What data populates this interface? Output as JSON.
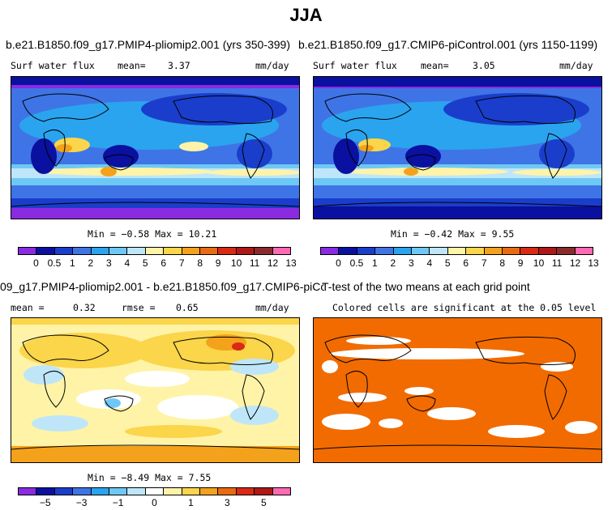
{
  "title": "JJA",
  "panels": {
    "p1": {
      "run_title": "b.e21.B1850.f09_g17.PMIP4-pliomip2.001 (yrs 350-399)",
      "var_label": "Surf water flux",
      "mean_label": "mean=",
      "mean_value": "3.37",
      "units": "mm/day",
      "min_max": "Min =  −0.58 Max =  10.21"
    },
    "p2": {
      "run_title": "b.e21.B1850.f09_g17.CMIP6-piControl.001 (yrs 1150-1199)",
      "var_label": "Surf water flux",
      "mean_label": "mean=",
      "mean_value": "3.05",
      "units": "mm/day",
      "min_max": "Min =  −0.42 Max =    9.55"
    },
    "p3": {
      "diff_title": "09_g17.PMIP4-pliomip2.001 - b.e21.B1850.f09_g17.CMIP6-piControl.001",
      "mean_label": "mean =",
      "mean_value": "0.32",
      "rmse_label": "rmse =",
      "rmse_value": "0.65",
      "units": "mm/day",
      "min_max": "Min =  −8.49 Max =   7.55"
    },
    "p4": {
      "ttest_title": "T-test of the two means at each grid point",
      "sig_label": "Colored cells are significant at the 0.05 level"
    }
  },
  "chart_data": [
    {
      "type": "heatmap",
      "title": "b.e21.B1850.f09_g17.PMIP4-pliomip2.001 (yrs 350-399)",
      "variable": "Surf water flux",
      "units": "mm/day",
      "mean": 3.37,
      "min": -0.58,
      "max": 10.21,
      "colorbar_levels": [
        0,
        0.5,
        1,
        2,
        3,
        4,
        5,
        6,
        7,
        8,
        9,
        10,
        11,
        12,
        13
      ],
      "colorbar_tick_labels": [
        "0",
        "0.5",
        "1",
        "2",
        "3",
        "4",
        "5",
        "6",
        "7",
        "8",
        "9",
        "10",
        "11",
        "12",
        "13"
      ]
    },
    {
      "type": "heatmap",
      "title": "b.e21.B1850.f09_g17.CMIP6-piControl.001 (yrs 1150-1199)",
      "variable": "Surf water flux",
      "units": "mm/day",
      "mean": 3.05,
      "min": -0.42,
      "max": 9.55,
      "colorbar_levels": [
        0,
        0.5,
        1,
        2,
        3,
        4,
        5,
        6,
        7,
        8,
        9,
        10,
        11,
        12,
        13
      ],
      "colorbar_tick_labels": [
        "0",
        "0.5",
        "1",
        "2",
        "3",
        "4",
        "5",
        "6",
        "7",
        "8",
        "9",
        "10",
        "11",
        "12",
        "13"
      ]
    },
    {
      "type": "heatmap",
      "title": "09_g17.PMIP4-pliomip2.001 - b.e21.B1850.f09_g17.CMIP6-piControl.001",
      "units": "mm/day",
      "mean": 0.32,
      "rmse": 0.65,
      "min": -8.49,
      "max": 7.55,
      "colorbar_tick_labels": [
        "-5",
        "-3",
        "-1",
        "0",
        "1",
        "3",
        "5"
      ]
    },
    {
      "type": "heatmap",
      "title": "T-test of the two means at each grid point",
      "subtitle": "Colored cells are significant at the 0.05 level"
    }
  ],
  "colors": {
    "abs_scale": [
      "#8a2be2",
      "#0a10a0",
      "#1a3ecb",
      "#3f74e6",
      "#2aa4ee",
      "#6ec8f5",
      "#bfe6f8",
      "#fff3a8",
      "#fbd54a",
      "#f4a21b",
      "#ea6a10",
      "#d82a14",
      "#b01818",
      "#8c2b2b",
      "#ff69b4"
    ],
    "diff_scale": [
      "#8a2be2",
      "#0a10a0",
      "#1a3ecb",
      "#3f74e6",
      "#2aa4ee",
      "#6ec8f5",
      "#bfe6f8",
      "#ffffff",
      "#fff3a8",
      "#fbd54a",
      "#f4a21b",
      "#ea6a10",
      "#d82a14",
      "#b01818",
      "#ff69b4"
    ],
    "ttest_fill": "#f26b00"
  },
  "diff_colorbar_labels": [
    "−5",
    "−3",
    "−1",
    "0",
    "1",
    "3",
    "5"
  ]
}
